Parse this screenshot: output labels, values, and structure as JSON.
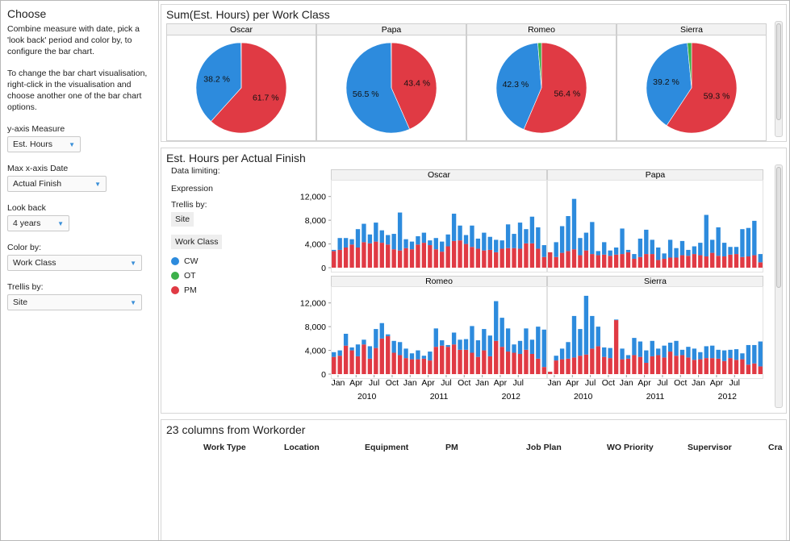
{
  "left": {
    "title": "Choose",
    "instructions1": "Combine measure with date, pick a 'look back' period and color by, to configure the bar chart.",
    "instructions2": "To change the bar chart visualisation, right-click in the visualisation and choose another one of the bar chart options.",
    "controls": [
      {
        "label": "y-axis Measure",
        "value": "Est. Hours"
      },
      {
        "label": "Max x-axis Date",
        "value": "Actual Finish"
      },
      {
        "label": "Look back",
        "value": "4 years"
      },
      {
        "label": "Color by:",
        "value": "Work Class"
      },
      {
        "label": "Trellis by:",
        "value": "Site"
      }
    ]
  },
  "colors": {
    "CW": "#2d8bdd",
    "OT": "#3cb04a",
    "PM": "#e03a44"
  },
  "pie_panel": {
    "title": "Sum(Est. Hours) per Work Class",
    "charts": [
      {
        "site": "Oscar",
        "blue": 38.2,
        "green": 0.1,
        "red": 61.7,
        "blue_label": "38.2 %",
        "red_label": "61.7 %"
      },
      {
        "site": "Papa",
        "blue": 56.5,
        "green": 0.1,
        "red": 43.4,
        "blue_label": "56.5 %",
        "red_label": "43.4 %"
      },
      {
        "site": "Romeo",
        "blue": 42.3,
        "green": 1.3,
        "red": 56.4,
        "blue_label": "42.3 %",
        "red_label": "56.4 %"
      },
      {
        "site": "Sierra",
        "blue": 39.2,
        "green": 1.5,
        "red": 59.3,
        "blue_label": "39.2 %",
        "red_label": "59.3 %"
      }
    ]
  },
  "bar_panel": {
    "title": "Est. Hours per Actual Finish",
    "data_limiting": "Data limiting:",
    "expression": "Expression",
    "trellis_label": "Trellis by:",
    "trellis_value": "Site",
    "legend_title": "Work Class",
    "legend": [
      {
        "name": "CW",
        "color": "#2d8bdd"
      },
      {
        "name": "OT",
        "color": "#3cb04a"
      },
      {
        "name": "PM",
        "color": "#e03a44"
      }
    ],
    "y_ticks": [
      "12,000",
      "8,000",
      "4,000",
      "0"
    ],
    "x_month_labels": [
      "Jan",
      "Apr",
      "Jul",
      "Oct",
      "Jan",
      "Apr",
      "Jul",
      "Oct",
      "Jan",
      "Apr",
      "Jul"
    ],
    "x_year_labels": [
      "2010",
      "2011",
      "2012"
    ]
  },
  "chart_data": {
    "type": "bar",
    "stacked": true,
    "y_range": [
      0,
      14000
    ],
    "series_names": [
      "PM",
      "OT",
      "CW"
    ],
    "panels": [
      {
        "site": "Oscar",
        "pm": [
          2800,
          3000,
          3400,
          3900,
          3400,
          4300,
          4100,
          4400,
          4200,
          3900,
          3100,
          2900,
          3300,
          3100,
          3900,
          4200,
          3800,
          3100,
          2700,
          3600,
          4500,
          4600,
          4000,
          3500,
          3200,
          2900,
          3000,
          2600,
          3200,
          3300,
          3300,
          3200,
          4100,
          4100,
          3200,
          1800
        ],
        "cw": [
          200,
          2000,
          1600,
          900,
          3100,
          3100,
          1500,
          3200,
          2100,
          1600,
          2600,
          6400,
          1500,
          1300,
          1400,
          1700,
          800,
          1900,
          1700,
          2000,
          4600,
          2500,
          1500,
          3600,
          1700,
          3000,
          2200,
          2100,
          1400,
          4000,
          2400,
          4400,
          2400,
          4500,
          3600,
          2000
        ]
      },
      {
        "site": "Papa",
        "pm": [
          2600,
          1800,
          2500,
          2800,
          3100,
          2100,
          2900,
          2300,
          2100,
          2200,
          2000,
          2200,
          2300,
          2600,
          1500,
          1800,
          2300,
          2300,
          1300,
          1500,
          1700,
          1700,
          2100,
          2000,
          2300,
          2100,
          1900,
          2500,
          2000,
          1900,
          2200,
          2300,
          1800,
          1900,
          2100,
          900
        ],
        "cw": [
          0,
          2500,
          4500,
          5900,
          8500,
          2900,
          3000,
          5400,
          700,
          2100,
          900,
          1200,
          4300,
          400,
          800,
          3100,
          4100,
          2400,
          2100,
          900,
          3000,
          1600,
          2400,
          1000,
          1300,
          2100,
          7000,
          2200,
          4800,
          2300,
          1300,
          1200,
          4700,
          4800,
          5800,
          1400
        ]
      },
      {
        "site": "Romeo",
        "pm": [
          2900,
          3100,
          4800,
          4000,
          3000,
          5000,
          2600,
          4400,
          6000,
          6400,
          3600,
          3200,
          2700,
          2500,
          2500,
          2600,
          2300,
          4600,
          4800,
          4600,
          5000,
          4100,
          4100,
          3600,
          2900,
          4000,
          3000,
          5600,
          4600,
          3800,
          3600,
          3400,
          4100,
          3400,
          2600,
          1200
        ],
        "cw": [
          800,
          900,
          2000,
          500,
          2000,
          800,
          2100,
          3200,
          2600,
          300,
          2000,
          2200,
          1600,
          1000,
          1500,
          500,
          1500,
          3100,
          900,
          300,
          2000,
          1700,
          1800,
          4500,
          2800,
          3600,
          3500,
          6700,
          4900,
          3900,
          1400,
          2200,
          3600,
          2400,
          5400,
          6300
        ]
      },
      {
        "site": "Sierra",
        "pm": [
          400,
          2300,
          2500,
          2600,
          2800,
          3100,
          3300,
          4300,
          4700,
          2900,
          2700,
          9100,
          2500,
          2600,
          3200,
          2900,
          1900,
          3000,
          3200,
          2800,
          3800,
          3100,
          3200,
          2800,
          2400,
          2500,
          2700,
          2700,
          2600,
          2200,
          2700,
          2400,
          2500,
          1600,
          1800,
          1300
        ],
        "cw": [
          0,
          800,
          1800,
          2800,
          7000,
          4500,
          9900,
          5500,
          3300,
          1600,
          1700,
          100,
          1800,
          600,
          2900,
          2600,
          2100,
          2600,
          1100,
          2000,
          1500,
          2500,
          900,
          1800,
          1900,
          1200,
          2000,
          2100,
          1500,
          1800,
          1400,
          1800,
          1000,
          3300,
          3100,
          4200
        ]
      }
    ]
  },
  "table_panel": {
    "title": "23 columns from Workorder",
    "columns": [
      "Work Type",
      "Location",
      "Equipment",
      "PM",
      "Job Plan",
      "WO Priority",
      "Supervisor",
      "Cra"
    ]
  }
}
